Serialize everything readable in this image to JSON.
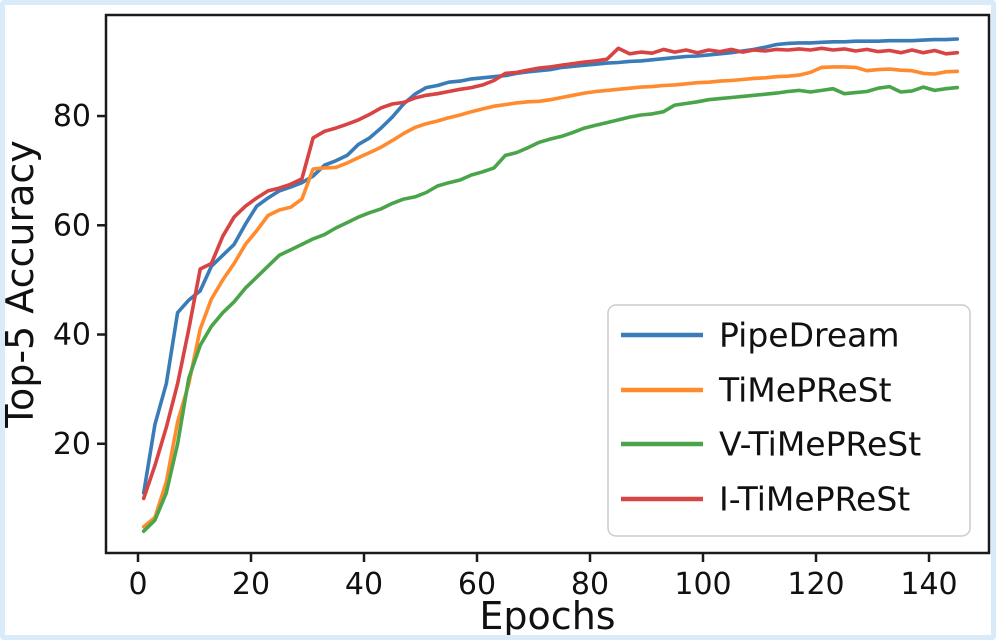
{
  "figure": {
    "background": "#ffffff",
    "frame_border_color": "#d9eaf8",
    "spine_color": "#1a1a1a",
    "text_color": "#111111",
    "legend_border_color": "#cccccc",
    "legend_background": "#ffffff"
  },
  "chart_data": {
    "type": "line",
    "title": "",
    "xlabel": "Epochs",
    "ylabel": "Top-5 Accuracy",
    "xlim": [
      -6,
      150.6
    ],
    "ylim": [
      0,
      98.5
    ],
    "xticks": [
      0,
      20,
      40,
      60,
      80,
      100,
      120,
      140
    ],
    "yticks": [
      20,
      40,
      60,
      80
    ],
    "grid": false,
    "legend_position": "lower right",
    "legend_entries": [
      "PipeDream",
      "TiMePReSt",
      "V-TiMePReSt",
      "I-TiMePReSt"
    ],
    "x": [
      1,
      3,
      5,
      7,
      9,
      11,
      13,
      15,
      17,
      19,
      21,
      23,
      25,
      27,
      29,
      31,
      33,
      35,
      37,
      39,
      41,
      43,
      45,
      47,
      49,
      51,
      53,
      55,
      57,
      59,
      61,
      63,
      65,
      67,
      69,
      71,
      73,
      75,
      77,
      79,
      81,
      83,
      85,
      87,
      89,
      91,
      93,
      95,
      97,
      99,
      101,
      103,
      105,
      107,
      109,
      111,
      113,
      115,
      117,
      119,
      121,
      123,
      125,
      127,
      129,
      131,
      133,
      135,
      137,
      139,
      141,
      143,
      145
    ],
    "series": [
      {
        "name": "PipeDream",
        "color": "#3a7cb8",
        "values": [
          11,
          23.5,
          31,
          44,
          46.3,
          48,
          52.5,
          54.5,
          56.5,
          60.2,
          63.5,
          65,
          66.3,
          67,
          67.8,
          69,
          71,
          71.8,
          72.8,
          74.8,
          76,
          77.8,
          79.8,
          82.2,
          84,
          85.2,
          85.6,
          86.2,
          86.4,
          86.8,
          87,
          87.2,
          87.4,
          87.8,
          88.1,
          88.3,
          88.5,
          88.9,
          89.1,
          89.3,
          89.5,
          89.7,
          89.8,
          90,
          90.1,
          90.3,
          90.5,
          90.7,
          90.9,
          91,
          91.2,
          91.4,
          91.6,
          91.9,
          92.2,
          92.6,
          93.1,
          93.3,
          93.4,
          93.4,
          93.5,
          93.6,
          93.6,
          93.7,
          93.7,
          93.7,
          93.8,
          93.8,
          93.8,
          93.9,
          94,
          94,
          94.1
        ]
      },
      {
        "name": "TiMePReSt",
        "color": "#ff8b2e",
        "values": [
          4.8,
          6.5,
          13,
          24,
          31,
          41,
          46.5,
          50,
          53,
          56.5,
          59,
          61.8,
          62.8,
          63.3,
          64.8,
          70.3,
          70.5,
          70.6,
          71.4,
          72.4,
          73.3,
          74.3,
          75.5,
          76.8,
          77.9,
          78.6,
          79.1,
          79.7,
          80.2,
          80.8,
          81.3,
          81.8,
          82.1,
          82.4,
          82.6,
          82.7,
          83,
          83.4,
          83.8,
          84.2,
          84.5,
          84.7,
          84.9,
          85.1,
          85.3,
          85.4,
          85.6,
          85.7,
          85.9,
          86.1,
          86.2,
          86.4,
          86.5,
          86.7,
          86.9,
          87,
          87.2,
          87.3,
          87.5,
          88,
          88.9,
          89,
          89,
          88.9,
          88.3,
          88.5,
          88.6,
          88.4,
          88.3,
          87.8,
          87.7,
          88.1,
          88.2
        ]
      },
      {
        "name": "V-TiMePReSt",
        "color": "#4aa54a",
        "values": [
          4,
          6,
          11,
          20,
          32,
          38,
          41.5,
          44,
          46,
          48.5,
          50.5,
          52.5,
          54.5,
          55.5,
          56.5,
          57.5,
          58.3,
          59.5,
          60.5,
          61.5,
          62.3,
          63,
          64,
          64.8,
          65.2,
          66,
          67.2,
          67.8,
          68.3,
          69.2,
          69.8,
          70.5,
          72.8,
          73.3,
          74.2,
          75.2,
          75.8,
          76.3,
          77,
          77.8,
          78.3,
          78.8,
          79.3,
          79.8,
          80.2,
          80.4,
          80.8,
          82,
          82.3,
          82.6,
          83,
          83.2,
          83.4,
          83.6,
          83.8,
          84,
          84.2,
          84.5,
          84.7,
          84.4,
          84.7,
          85,
          84.1,
          84.3,
          84.5,
          85.1,
          85.4,
          84.4,
          84.6,
          85.3,
          84.7,
          85,
          85.2
        ]
      },
      {
        "name": "I-TiMePReSt",
        "color": "#d84343",
        "values": [
          10,
          16,
          23,
          31,
          41,
          52,
          53,
          58,
          61.5,
          63.5,
          65,
          66.3,
          66.8,
          67.5,
          68.5,
          76,
          77.2,
          77.8,
          78.5,
          79.3,
          80.3,
          81.5,
          82.2,
          82.5,
          83.3,
          83.8,
          84.1,
          84.5,
          84.9,
          85.2,
          85.7,
          86.5,
          87.8,
          88,
          88.4,
          88.8,
          89,
          89.3,
          89.6,
          89.9,
          90.1,
          90.4,
          92.4,
          91.4,
          91.7,
          91.5,
          92.2,
          91.7,
          92.1,
          91.6,
          92.1,
          91.8,
          92.2,
          91.7,
          92.1,
          91.9,
          92.2,
          92.1,
          92.3,
          92.1,
          92.4,
          92.1,
          92.3,
          91.9,
          92.2,
          91.8,
          92,
          91.6,
          92.1,
          91.6,
          92,
          91.4,
          91.6
        ]
      }
    ]
  }
}
